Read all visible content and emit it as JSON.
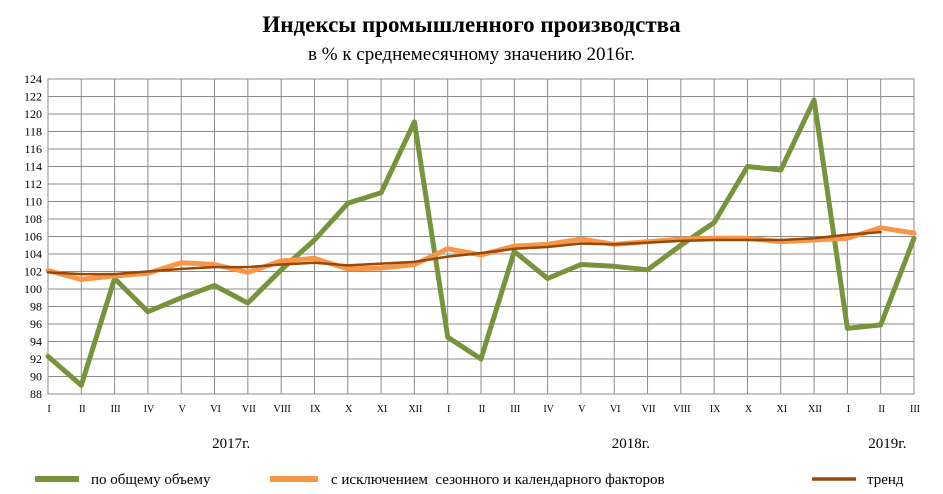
{
  "chart_data": {
    "type": "line",
    "title": "Индексы промышленного производства",
    "subtitle": "в % к среднемесячному значению 2016г.",
    "ylim": [
      88,
      124
    ],
    "y_ticks": [
      88,
      90,
      92,
      94,
      96,
      98,
      100,
      102,
      104,
      106,
      108,
      110,
      112,
      114,
      116,
      118,
      120,
      122,
      124
    ],
    "categories": [
      "I",
      "II",
      "III",
      "IV",
      "V",
      "VI",
      "VII",
      "VIII",
      "IX",
      "X",
      "XI",
      "XII",
      "I",
      "II",
      "III",
      "IV",
      "V",
      "VI",
      "VII",
      "VIII",
      "IX",
      "X",
      "XI",
      "XII",
      "I",
      "II",
      "III"
    ],
    "year_labels": [
      {
        "label": "2017г.",
        "at_index": 5.5
      },
      {
        "label": "2018г.",
        "at_index": 17.5
      },
      {
        "label": "2019г.",
        "at_index": 25.2
      }
    ],
    "grid": true,
    "legend_position": "bottom",
    "series": [
      {
        "name": "по общему объему",
        "color": "#77933c",
        "width": 5,
        "values": [
          92.3,
          89.0,
          101.2,
          97.4,
          99.0,
          100.4,
          98.4,
          102.2,
          105.6,
          109.8,
          111.0,
          119.1,
          94.5,
          92.0,
          104.3,
          101.2,
          102.8,
          102.6,
          102.2,
          105.0,
          107.6,
          114.0,
          113.6,
          121.6,
          95.5,
          95.9,
          105.8
        ]
      },
      {
        "name": "с исключением  сезонного и календарного факторов",
        "color": "#f79646",
        "width": 5,
        "values": [
          102.1,
          101.1,
          101.5,
          101.8,
          103.0,
          102.8,
          101.9,
          103.2,
          103.5,
          102.3,
          102.4,
          102.8,
          104.6,
          103.9,
          104.9,
          105.1,
          105.7,
          105.1,
          105.4,
          105.7,
          105.8,
          105.8,
          105.4,
          105.6,
          105.8,
          107.0,
          106.4
        ]
      },
      {
        "name": "тренд",
        "color": "#984807",
        "width": 2.5,
        "values": [
          101.9,
          101.7,
          101.7,
          102.0,
          102.3,
          102.5,
          102.5,
          102.8,
          103.0,
          102.7,
          102.9,
          103.1,
          103.7,
          104.1,
          104.6,
          104.8,
          105.2,
          105.1,
          105.3,
          105.5,
          105.6,
          105.6,
          105.6,
          105.8,
          106.2,
          106.5,
          null
        ]
      }
    ]
  }
}
